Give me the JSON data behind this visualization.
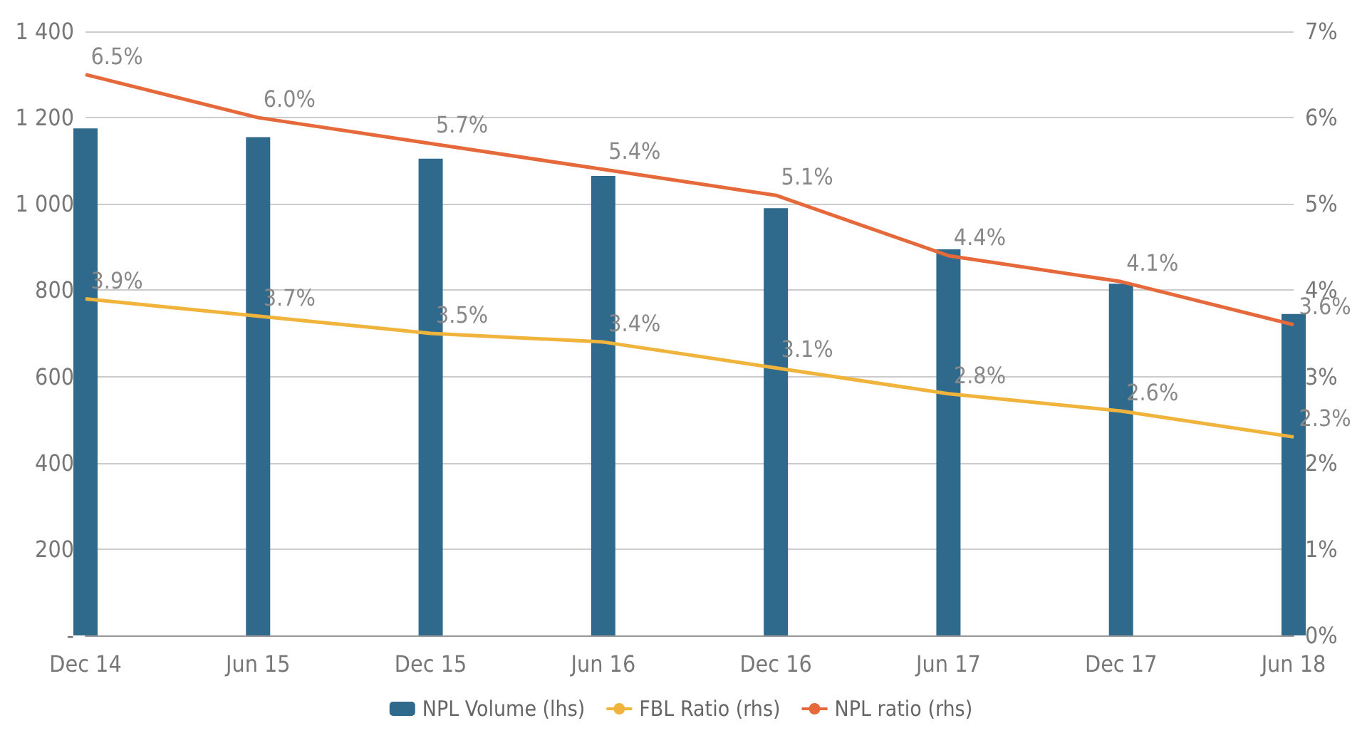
{
  "chart_data": {
    "type": "bar",
    "categories": [
      "Dec 14",
      "Jun 15",
      "Dec 15",
      "Jun 16",
      "Dec 16",
      "Jun 17",
      "Dec 17",
      "Jun 18"
    ],
    "series": [
      {
        "name": "NPL Volume (lhs)",
        "color": "#2f6a8c",
        "values": [
          1175,
          1155,
          1105,
          1065,
          990,
          895,
          815,
          745
        ]
      },
      {
        "name": "FBL Ratio (rhs)",
        "type": "line",
        "axis": "y2",
        "color": "#f0b43c",
        "values": [
          3.9,
          3.7,
          3.5,
          3.4,
          3.1,
          2.8,
          2.6,
          2.3
        ],
        "value_labels": [
          "3.9%",
          "3.7%",
          "3.5%",
          "3.4%",
          "3.1%",
          "2.8%",
          "2.6%",
          "2.3%"
        ]
      },
      {
        "name": "NPL ratio (rhs)",
        "type": "line",
        "axis": "y2",
        "color": "#e5693a",
        "values": [
          6.5,
          6.0,
          5.7,
          5.4,
          5.1,
          4.4,
          4.1,
          3.6
        ],
        "value_labels": [
          "6.5%",
          "6.0%",
          "5.7%",
          "5.4%",
          "5.1%",
          "4.4%",
          "4.1%",
          "3.6%"
        ]
      }
    ],
    "ylim": [
      0,
      1400
    ],
    "yticks": [
      {
        "value": 0,
        "label": "-"
      },
      200,
      400,
      600,
      800,
      {
        "value": 1000,
        "label": "1 000"
      },
      {
        "value": 1200,
        "label": "1 200"
      },
      {
        "value": 1400,
        "label": "1 400"
      }
    ],
    "y2lim": [
      0,
      7
    ],
    "y2ticks": [
      {
        "value": 0,
        "label": "0%"
      },
      {
        "value": 1,
        "label": "1%"
      },
      {
        "value": 2,
        "label": "2%"
      },
      {
        "value": 3,
        "label": "3%"
      },
      {
        "value": 4,
        "label": "4%"
      },
      {
        "value": 5,
        "label": "5%"
      },
      {
        "value": 6,
        "label": "6%"
      },
      {
        "value": 7,
        "label": "7%"
      }
    ],
    "grid": "y",
    "legend": "bottom",
    "marker": "none",
    "line_style": "solid"
  }
}
